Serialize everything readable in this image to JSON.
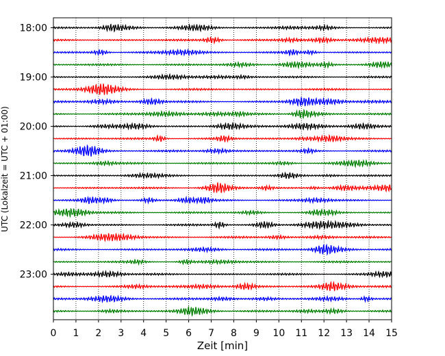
{
  "chart_data": {
    "type": "line",
    "title": "",
    "xlabel": "Zeit  [min]",
    "ylabel": "UTC (Lokalzeit = UTC + 01:00)",
    "xlim": [
      0,
      15
    ],
    "x_ticks": [
      0,
      1,
      2,
      3,
      4,
      5,
      6,
      7,
      8,
      9,
      10,
      11,
      12,
      13,
      14,
      15
    ],
    "y_tick_labels": [
      "18:00",
      "19:00",
      "20:00",
      "21:00",
      "22:00",
      "23:00"
    ],
    "x_grid": true,
    "trace_colors": [
      "#000000",
      "#ff0000",
      "#0000ff",
      "#008000"
    ],
    "traces": [
      {
        "start": "18:00"
      },
      {
        "start": "18:15"
      },
      {
        "start": "18:30"
      },
      {
        "start": "18:45"
      },
      {
        "start": "19:00"
      },
      {
        "start": "19:15"
      },
      {
        "start": "19:30"
      },
      {
        "start": "19:45"
      },
      {
        "start": "20:00"
      },
      {
        "start": "20:15"
      },
      {
        "start": "20:30"
      },
      {
        "start": "20:45"
      },
      {
        "start": "21:00"
      },
      {
        "start": "21:15"
      },
      {
        "start": "21:30"
      },
      {
        "start": "21:45"
      },
      {
        "start": "22:00"
      },
      {
        "start": "22:15"
      },
      {
        "start": "22:30"
      },
      {
        "start": "22:45"
      },
      {
        "start": "23:00"
      },
      {
        "start": "23:15"
      },
      {
        "start": "23:30"
      },
      {
        "start": "23:45"
      }
    ]
  }
}
